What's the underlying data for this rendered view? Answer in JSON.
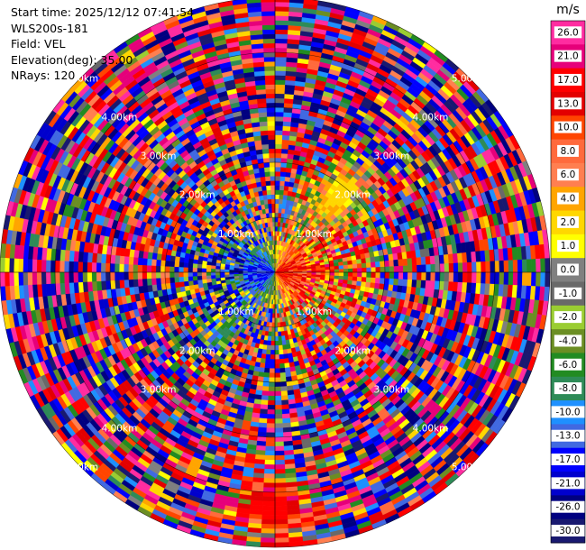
{
  "info": {
    "start_time": "Start time: 2025/12/12 07:41:54",
    "instrument": "WLS200s-181",
    "field": "Field: VEL",
    "elevation": "Elevation(deg): 35.00",
    "nrays": "NRays: 120"
  },
  "colorbar": {
    "unit": "m/s",
    "ticks": [
      "26.0",
      "21.0",
      "17.0",
      "13.0",
      "10.0",
      "8.0",
      "6.0",
      "4.0",
      "2.0",
      "1.0",
      "0.0",
      "-1.0",
      "-2.0",
      "-4.0",
      "-6.0",
      "-8.0",
      "-10.0",
      "-13.0",
      "-17.0",
      "-21.0",
      "-26.0",
      "-30.0"
    ],
    "colors": [
      "#ff2ca0",
      "#e6007a",
      "#ff0000",
      "#e30000",
      "#ff4500",
      "#ff6a3c",
      "#ff7f50",
      "#ffa500",
      "#ffd700",
      "#ffff00",
      "#808080",
      "#696969",
      "#9acd32",
      "#6b8e23",
      "#228b22",
      "#2e8b57",
      "#1e90ff",
      "#4169e1",
      "#0000ff",
      "#0000cd",
      "#000080",
      "#191970"
    ]
  },
  "chart_data": {
    "type": "heatmap",
    "projection": "polar PPI",
    "field": "VEL",
    "units": "m/s",
    "elevation_deg": 35.0,
    "n_rays": 120,
    "range_rings": [
      "1.00km",
      "2.00km",
      "3.00km",
      "4.00km",
      "5.00km"
    ],
    "ring_values_km": [
      1,
      2,
      3,
      4,
      5
    ],
    "max_range_km": 5.0,
    "value_range": [
      -30.0,
      30.0
    ],
    "dominant_pattern": [
      {
        "sector": "east",
        "values": "positive (red, 13 to 21 m/s) near range 1-2 km"
      },
      {
        "sector": "west",
        "values": "negative (blue, -17 to -21 m/s) near range 1-3 km"
      },
      {
        "sector": "north-east",
        "values": "near 2-4 m/s (yellow) patches"
      },
      {
        "sector": "south",
        "values": "positive (red, 17 to 21 m/s) at 4-5 km"
      },
      {
        "sector": "outer rings",
        "values": "noisy, full color range"
      }
    ]
  }
}
